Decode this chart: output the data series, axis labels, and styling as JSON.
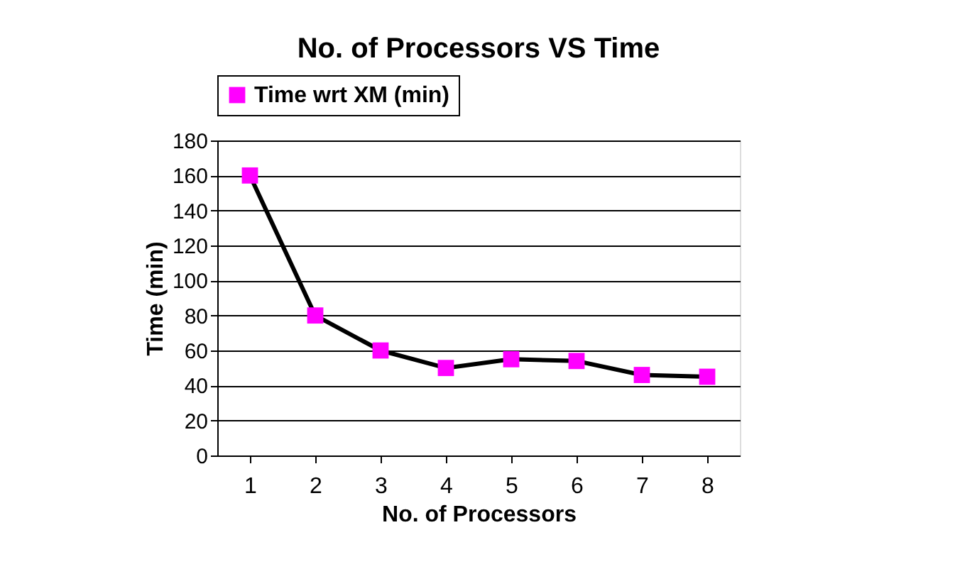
{
  "chart_data": {
    "type": "line",
    "title": "No. of Processors VS Time",
    "xlabel": "No. of Processors",
    "ylabel": "Time (min)",
    "categories": [
      "1",
      "2",
      "3",
      "4",
      "5",
      "6",
      "7",
      "8"
    ],
    "series": [
      {
        "name": "Time wrt XM (min)",
        "color": "#ff00ff",
        "values": [
          160,
          80,
          60,
          50,
          55,
          54,
          46,
          45
        ]
      }
    ],
    "ylim": [
      0,
      180
    ],
    "yticks": [
      0,
      20,
      40,
      60,
      80,
      100,
      120,
      140,
      160,
      180
    ],
    "grid": "y",
    "legend": "top",
    "marker": "square",
    "line_style": "solid"
  }
}
